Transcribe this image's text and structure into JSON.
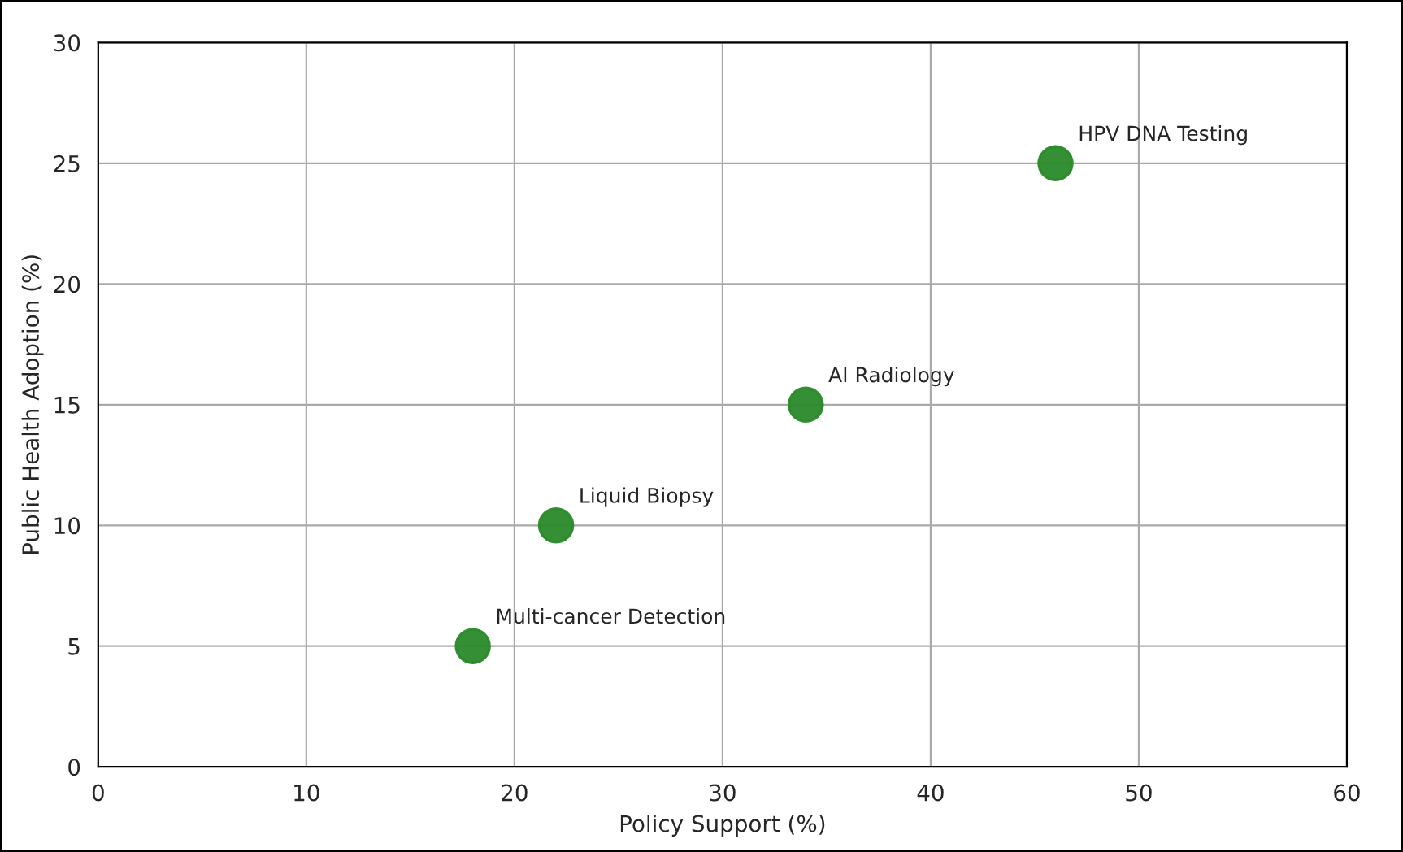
{
  "chart_data": {
    "type": "scatter",
    "xlabel": "Policy Support (%)",
    "ylabel": "Public Health Adoption (%)",
    "x": [
      18,
      22,
      34,
      46
    ],
    "series": [
      {
        "color": "#2a8a2a",
        "values": [
          5,
          10,
          15,
          25
        ]
      }
    ],
    "annotations": [
      {
        "text": "Multi-cancer Detection",
        "x": 18,
        "y": 5
      },
      {
        "text": "Liquid Biopsy",
        "x": 22,
        "y": 10
      },
      {
        "text": "AI Radiology",
        "x": 34,
        "y": 15
      },
      {
        "text": "HPV DNA Testing",
        "x": 46,
        "y": 25
      }
    ],
    "xlim": [
      0,
      60
    ],
    "ylim": [
      0,
      30
    ],
    "xticks": [
      0,
      10,
      20,
      30,
      40,
      50,
      60
    ],
    "yticks": [
      0,
      5,
      10,
      15,
      20,
      25,
      30
    ],
    "grid": true,
    "marker": "circle"
  }
}
